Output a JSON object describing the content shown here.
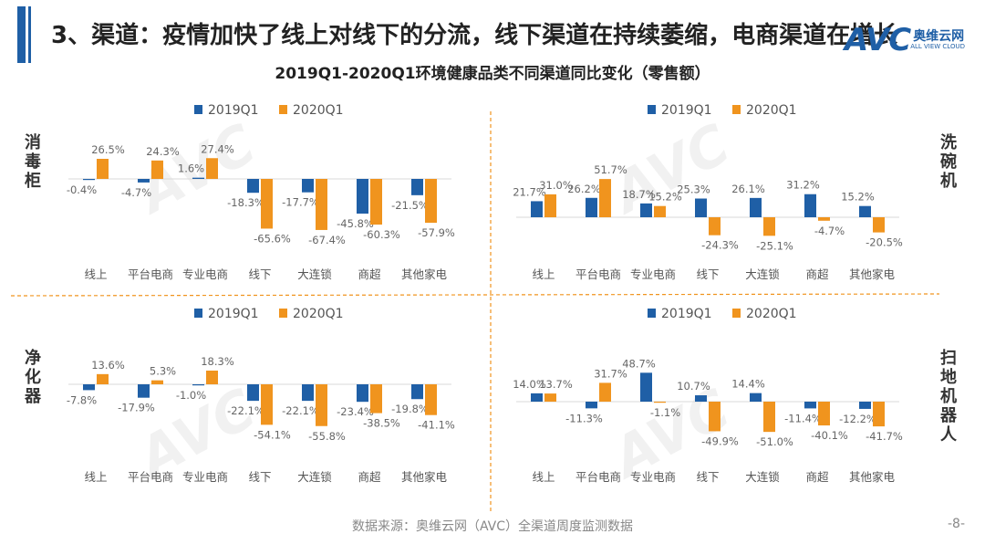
{
  "header": {
    "title": "3、渠道：疫情加快了线上对线下的分流，线下渠道在持续萎缩，电商渠道在增长",
    "subtitle": "2019Q1-2020Q1环境健康品类不同渠道同比变化（零售额）"
  },
  "logo": {
    "brand": "AVC",
    "cn": "奥维云网",
    "en": "ALL VIEW CLOUD"
  },
  "footer": {
    "source": "数据来源：奥维云网（AVC）全渠道周度监测数据",
    "page": "-8-"
  },
  "colors": {
    "s2019": "#1f5fa6",
    "s2020": "#f0941e",
    "divider": "#f0941e",
    "accent": "#1f5fa6"
  },
  "chart_data": [
    {
      "type": "bar",
      "panel_label": "消毒柜",
      "categories": [
        "线上",
        "平台电商",
        "专业电商",
        "线下",
        "大连锁",
        "商超",
        "其他家电"
      ],
      "series": [
        {
          "name": "2019Q1",
          "values": [
            -0.4,
            -4.7,
            1.6,
            -18.3,
            -17.7,
            -45.8,
            -21.5
          ],
          "labels": [
            "-0.4%",
            "-4.7%",
            "1.6%",
            "-18.3%",
            "-17.7%",
            "-45.8%",
            "-21.5%"
          ]
        },
        {
          "name": "2020Q1",
          "values": [
            26.5,
            24.3,
            27.4,
            -65.6,
            -67.4,
            -60.3,
            -57.9
          ],
          "labels": [
            "26.5%",
            "24.3%",
            "27.4%",
            "-65.6%",
            "-67.4%",
            "-60.3%",
            "-57.9%"
          ]
        }
      ]
    },
    {
      "type": "bar",
      "panel_label": "洗碗机",
      "categories": [
        "线上",
        "平台电商",
        "专业电商",
        "线下",
        "大连锁",
        "商超",
        "其他家电"
      ],
      "series": [
        {
          "name": "2019Q1",
          "values": [
            21.7,
            26.2,
            18.7,
            25.3,
            26.1,
            31.2,
            15.2
          ],
          "labels": [
            "21.7%",
            "26.2%",
            "18.7%",
            "25.3%",
            "26.1%",
            "31.2%",
            "15.2%"
          ]
        },
        {
          "name": "2020Q1",
          "values": [
            31.0,
            51.7,
            15.2,
            -24.3,
            -25.1,
            -4.7,
            -20.5
          ],
          "labels": [
            "31.0%",
            "51.7%",
            "15.2%",
            "-24.3%",
            "-25.1%",
            "-4.7%",
            "-20.5%"
          ]
        }
      ]
    },
    {
      "type": "bar",
      "panel_label": "净化器",
      "categories": [
        "线上",
        "平台电商",
        "专业电商",
        "线下",
        "大连锁",
        "商超",
        "其他家电"
      ],
      "series": [
        {
          "name": "2019Q1",
          "values": [
            -7.8,
            -17.9,
            -1.0,
            -22.1,
            -22.1,
            -23.4,
            -19.8
          ],
          "labels": [
            "-7.8%",
            "-17.9%",
            "-1.0%",
            "-22.1%",
            "-22.1%",
            "-23.4%",
            "-19.8%"
          ]
        },
        {
          "name": "2020Q1",
          "values": [
            13.6,
            5.3,
            18.3,
            -54.1,
            -55.8,
            -38.5,
            -41.1
          ],
          "labels": [
            "13.6%",
            "5.3%",
            "18.3%",
            "-54.1%",
            "-55.8%",
            "-38.5%",
            "-41.1%"
          ]
        }
      ]
    },
    {
      "type": "bar",
      "panel_label": "扫地机器人",
      "categories": [
        "线上",
        "平台电商",
        "专业电商",
        "线下",
        "大连锁",
        "商超",
        "其他家电"
      ],
      "series": [
        {
          "name": "2019Q1",
          "values": [
            14.0,
            -11.3,
            48.7,
            10.7,
            14.4,
            -11.4,
            -12.2
          ],
          "labels": [
            "14.0%",
            "-11.3%",
            "48.7%",
            "10.7%",
            "14.4%",
            "-11.4%",
            "-12.2%"
          ]
        },
        {
          "name": "2020Q1",
          "values": [
            13.7,
            31.7,
            -1.1,
            -49.9,
            -51.0,
            -40.1,
            -41.7
          ],
          "labels": [
            "13.7%",
            "31.7%",
            "-1.1%",
            "-49.9%",
            "-51.0%",
            "-40.1%",
            "-41.7%"
          ]
        }
      ]
    }
  ]
}
